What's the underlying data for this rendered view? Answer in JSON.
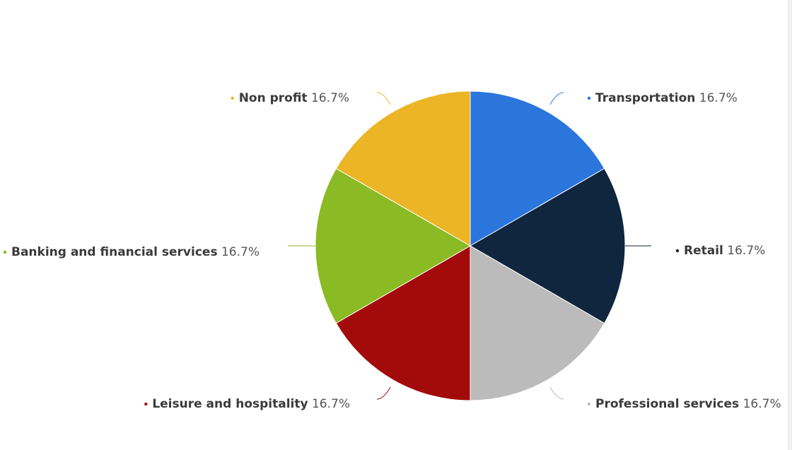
{
  "chart_data": {
    "type": "pie",
    "value_suffix": "%",
    "slices": [
      {
        "name": "Transportation",
        "value": 16.7,
        "color": "#2a76dd"
      },
      {
        "name": "Retail",
        "value": 16.7,
        "color": "#10263e"
      },
      {
        "name": "Professional services",
        "value": 16.7,
        "color": "#bbbbbb"
      },
      {
        "name": "Leisure and hospitality",
        "value": 16.7,
        "color": "#a30b0b"
      },
      {
        "name": "Banking and financial services",
        "value": 16.7,
        "color": "#8aba24"
      },
      {
        "name": "Non profit",
        "value": 16.7,
        "color": "#ebb526"
      }
    ]
  }
}
